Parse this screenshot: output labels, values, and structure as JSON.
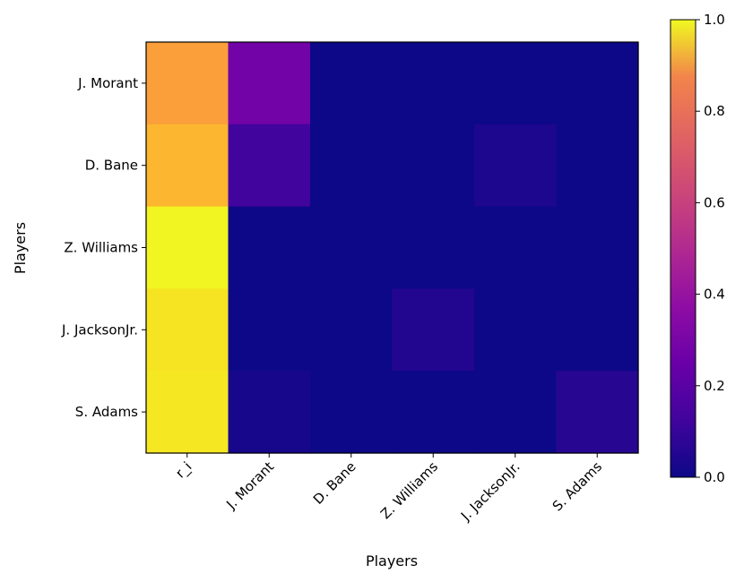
{
  "chart_data": {
    "type": "heatmap",
    "title": "",
    "xlabel": "Players",
    "ylabel": "Players",
    "x_categories": [
      "r_i",
      "J. Morant",
      "D. Bane",
      "Z. Williams",
      "J. JacksonJr.",
      "S. Adams"
    ],
    "y_categories": [
      "J. Morant",
      "D. Bane",
      "Z. Williams",
      "J. JacksonJr.",
      "S. Adams"
    ],
    "values": [
      [
        0.78,
        0.22,
        0.0,
        0.0,
        0.0,
        0.0
      ],
      [
        0.84,
        0.1,
        0.0,
        0.0,
        0.03,
        0.0
      ],
      [
        0.99,
        0.0,
        0.0,
        0.0,
        0.0,
        0.0
      ],
      [
        0.95,
        0.0,
        0.0,
        0.04,
        0.0,
        0.0
      ],
      [
        0.96,
        0.02,
        0.0,
        0.0,
        0.0,
        0.05
      ]
    ],
    "colormap": "plasma",
    "colorbar": {
      "vmin": 0.0,
      "vmax": 1.0,
      "ticks": [
        "0.0",
        "0.2",
        "0.4",
        "0.6",
        "0.8",
        "1.0"
      ]
    },
    "grid": false
  }
}
